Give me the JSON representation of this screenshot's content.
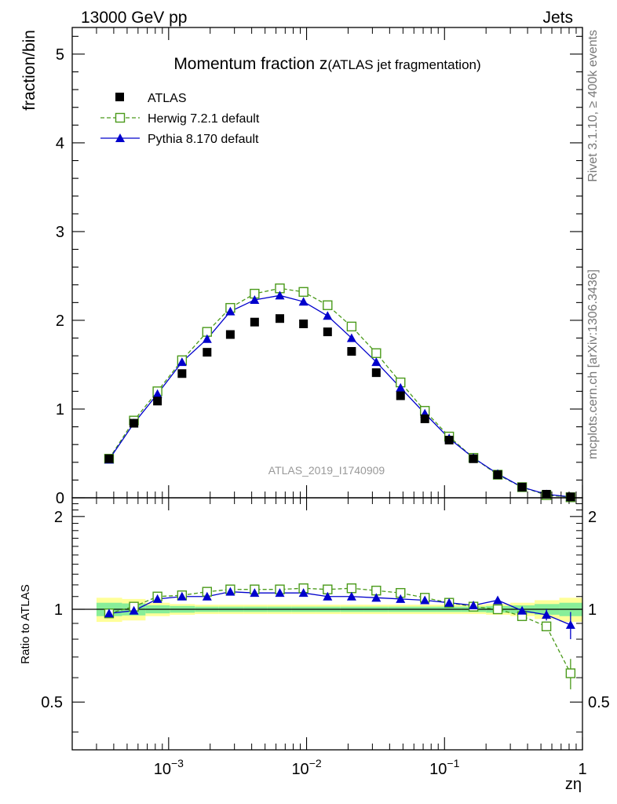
{
  "header": {
    "energy_label": "13000 GeV pp",
    "category_label": "Jets"
  },
  "side_text": {
    "rivet": "Rivet 3.1.10, ≥ 400k events",
    "mcplots": "mcplots.cern.ch [arXiv:1306.3436]"
  },
  "colors": {
    "atlas": "#000000",
    "herwig": "#4a9a1a",
    "pythia": "#0000cc",
    "band_yellow": "#ffff99",
    "band_green": "#88ee99"
  },
  "chart_data": [
    {
      "type": "line",
      "panel": "main",
      "title_main": "Momentum fraction ",
      "title_var": "z",
      "title_sub": "(ATLAS jet fragmentation)",
      "ylabel": "fraction/bin",
      "ylim": [
        0,
        5.3
      ],
      "yticks": [
        0,
        1,
        2,
        3,
        4,
        5
      ],
      "xscale": "log",
      "xlim": [
        0.0002,
        1
      ],
      "watermark": "ATLAS_2019_I1740909",
      "legend_position": "top-left",
      "x": [
        0.00037,
        0.00056,
        0.00083,
        0.00125,
        0.0019,
        0.0028,
        0.0042,
        0.0064,
        0.0095,
        0.0142,
        0.0212,
        0.032,
        0.048,
        0.072,
        0.108,
        0.162,
        0.243,
        0.365,
        0.548,
        0.82
      ],
      "series": [
        {
          "name": "ATLAS",
          "style": "marker-square",
          "values": [
            0.44,
            0.84,
            1.09,
            1.4,
            1.64,
            1.84,
            1.98,
            2.02,
            1.96,
            1.87,
            1.65,
            1.41,
            1.15,
            0.89,
            0.65,
            0.44,
            0.26,
            0.12,
            0.04,
            0.01
          ]
        },
        {
          "name": "Herwig 7.2.1 default",
          "style": "dashed-open-square",
          "values": [
            0.44,
            0.87,
            1.2,
            1.55,
            1.87,
            2.14,
            2.3,
            2.36,
            2.32,
            2.17,
            1.93,
            1.63,
            1.3,
            0.98,
            0.69,
            0.45,
            0.26,
            0.12,
            0.03,
            0.006
          ]
        },
        {
          "name": "Pythia 8.170 default",
          "style": "solid-triangle",
          "values": [
            0.43,
            0.84,
            1.17,
            1.53,
            1.79,
            2.1,
            2.23,
            2.28,
            2.21,
            2.05,
            1.8,
            1.53,
            1.24,
            0.95,
            0.67,
            0.45,
            0.27,
            0.12,
            0.04,
            0.01
          ]
        }
      ]
    },
    {
      "type": "line",
      "panel": "ratio",
      "ylabel": "Ratio to ATLAS",
      "ylim": [
        0.35,
        2.3
      ],
      "yticks": [
        0.5,
        1,
        2
      ],
      "ytick_labels": [
        "0.5",
        "1",
        "2"
      ],
      "xscale": "log",
      "xlim": [
        0.0002,
        1
      ],
      "xlabel": "zη",
      "xtick_labels": [
        {
          "value": 0.001,
          "base": "10",
          "exp": "−3"
        },
        {
          "value": 0.01,
          "base": "10",
          "exp": "−2"
        },
        {
          "value": 0.1,
          "base": "10",
          "exp": "−1"
        },
        {
          "value": 1,
          "base": "1",
          "exp": ""
        }
      ],
      "x": [
        0.00037,
        0.00056,
        0.00083,
        0.00125,
        0.0019,
        0.0028,
        0.0042,
        0.0064,
        0.0095,
        0.0142,
        0.0212,
        0.032,
        0.048,
        0.072,
        0.108,
        0.162,
        0.243,
        0.365,
        0.548,
        0.82
      ],
      "band_edges": [
        0.0003,
        0.00046,
        0.00068,
        0.00102,
        0.00155,
        0.0023,
        0.0035,
        0.0052,
        0.0078,
        0.0117,
        0.0175,
        0.026,
        0.039,
        0.059,
        0.088,
        0.132,
        0.2,
        0.3,
        0.45,
        0.68,
        1.0
      ],
      "band_green_halfwidth": [
        0.05,
        0.045,
        0.03,
        0.025,
        0.02,
        0.02,
        0.02,
        0.02,
        0.02,
        0.02,
        0.02,
        0.02,
        0.02,
        0.02,
        0.02,
        0.02,
        0.025,
        0.03,
        0.04,
        0.05
      ],
      "band_yellow_halfwidth": [
        0.09,
        0.08,
        0.05,
        0.04,
        0.035,
        0.035,
        0.035,
        0.035,
        0.035,
        0.035,
        0.035,
        0.035,
        0.035,
        0.035,
        0.035,
        0.035,
        0.04,
        0.05,
        0.07,
        0.09
      ],
      "series": [
        {
          "name": "Herwig 7.2.1 default",
          "style": "dashed-open-square",
          "values": [
            0.97,
            1.02,
            1.1,
            1.11,
            1.14,
            1.16,
            1.16,
            1.16,
            1.17,
            1.16,
            1.17,
            1.15,
            1.13,
            1.09,
            1.05,
            1.02,
            1.0,
            0.95,
            0.88,
            0.62
          ],
          "errors": [
            0,
            0,
            0,
            0,
            0,
            0,
            0,
            0,
            0,
            0,
            0,
            0,
            0,
            0,
            0,
            0,
            0,
            0.01,
            0.02,
            0.07
          ]
        },
        {
          "name": "Pythia 8.170 default",
          "style": "solid-triangle",
          "values": [
            0.97,
            0.99,
            1.08,
            1.1,
            1.1,
            1.14,
            1.13,
            1.13,
            1.13,
            1.1,
            1.1,
            1.09,
            1.08,
            1.07,
            1.05,
            1.03,
            1.07,
            0.99,
            0.96,
            0.89
          ],
          "errors": [
            0,
            0,
            0,
            0,
            0,
            0,
            0,
            0,
            0,
            0,
            0,
            0,
            0,
            0,
            0,
            0,
            0,
            0.02,
            0.04,
            0.09
          ]
        }
      ]
    }
  ]
}
